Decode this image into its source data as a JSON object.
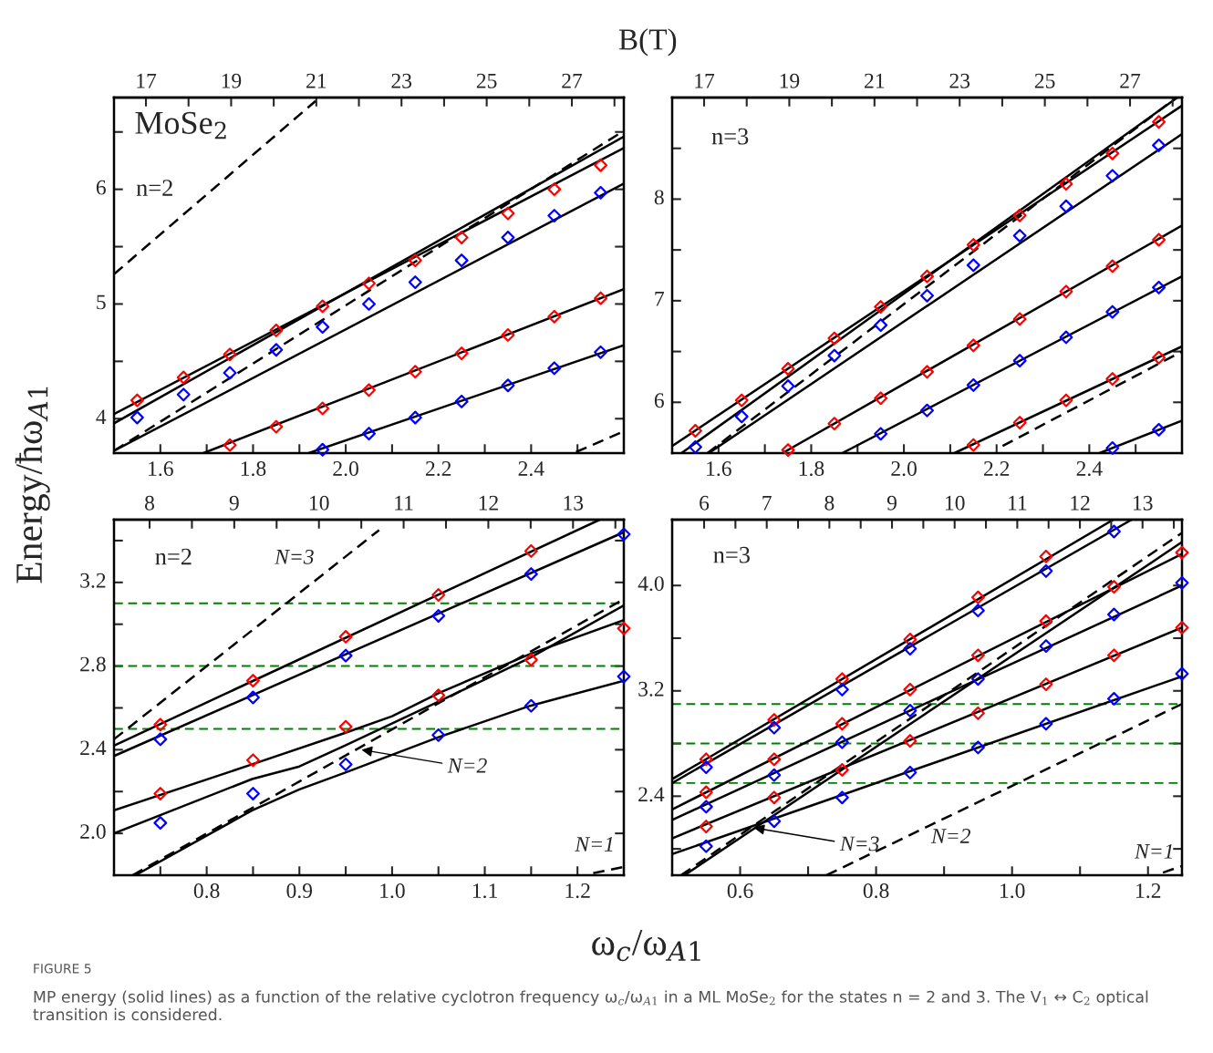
{
  "chart_data": [
    {
      "type": "line",
      "ylabel": "Energy/ħω$_{A1}$",
      "x2label": "B(T)",
      "xlim": [
        1.5,
        2.6
      ],
      "ylim": [
        3.7,
        6.8
      ],
      "x2lim": [
        16.25,
        28.22
      ],
      "xticks": [
        1.6,
        {
          "value": 1.7,
          "label": null
        },
        1.8,
        {
          "value": 1.9,
          "label": null
        },
        {
          "value": 2,
          "label": "2.0"
        },
        {
          "value": 2.1,
          "label": null
        },
        2.2,
        {
          "value": 2.3,
          "label": null
        },
        2.4,
        {
          "value": 2.5,
          "label": null
        }
      ],
      "yticks": [
        4,
        {
          "value": 4.5,
          "label": null
        },
        5,
        {
          "value": 5.5,
          "label": null
        },
        6,
        {
          "value": 6.5,
          "label": null
        }
      ],
      "x2ticks": [
        17,
        {
          "value": 18,
          "label": null
        },
        19,
        {
          "value": 20,
          "label": null
        },
        21,
        {
          "value": 22,
          "label": null
        },
        23,
        {
          "value": 24,
          "label": null
        },
        25,
        {
          "value": 26,
          "label": null
        },
        27,
        {
          "value": 28,
          "label": null
        }
      ],
      "annotations": [
        "MoSe$_{2}$",
        "n=2"
      ],
      "series": [
        {
          "type": "line",
          "color": "#000000",
          "line_style": "solid",
          "x": [
            1.5,
            2.6
          ],
          "values": [
            4.04,
            6.36
          ]
        },
        {
          "type": "line",
          "color": "#000000",
          "line_style": "solid",
          "x": [
            1.5,
            2.6
          ],
          "values": [
            3.96,
            6.46
          ]
        },
        {
          "type": "line",
          "color": "#000000",
          "line_style": "solid",
          "x": [
            1.5,
            2.6
          ],
          "values": [
            3.72,
            6.05
          ]
        },
        {
          "type": "line",
          "color": "#000000",
          "line_style": "solid",
          "x": [
            1.693,
            2.6
          ],
          "values": [
            3.7,
            5.13
          ]
        },
        {
          "type": "line",
          "color": "#000000",
          "line_style": "solid",
          "x": [
            1.92,
            2.6
          ],
          "values": [
            3.7,
            4.64
          ]
        },
        {
          "type": "line",
          "color": "#000000",
          "line_style": "dashed",
          "x": [
            1.5,
            1.935
          ],
          "values": [
            5.26,
            6.77
          ]
        },
        {
          "type": "line",
          "color": "#000000",
          "line_style": "dashed",
          "x": [
            1.5,
            2.6
          ],
          "values": [
            3.72,
            6.51
          ]
        },
        {
          "type": "line",
          "color": "#000000",
          "line_style": "dashed",
          "x": [
            2.497,
            2.6
          ],
          "values": [
            3.71,
            3.89
          ]
        },
        {
          "type": "scatter",
          "color": "#ff0000",
          "marker": "diamond",
          "x": [
            1.55,
            1.65,
            1.75,
            1.85,
            1.95,
            2.05,
            2.15,
            2.25,
            2.35,
            2.45,
            2.55
          ],
          "values": [
            4.16,
            4.36,
            4.56,
            4.77,
            4.98,
            5.18,
            5.38,
            5.58,
            5.79,
            6.0,
            6.21
          ]
        },
        {
          "type": "scatter",
          "color": "#0000ff",
          "marker": "diamond",
          "x": [
            1.55,
            1.65,
            1.75,
            1.85,
            1.95,
            2.05,
            2.15,
            2.25,
            2.35,
            2.45,
            2.55
          ],
          "values": [
            4.01,
            4.21,
            4.4,
            4.6,
            4.8,
            5.0,
            5.19,
            5.38,
            5.58,
            5.77,
            5.97
          ]
        },
        {
          "type": "scatter",
          "color": "#ff0000",
          "marker": "diamond",
          "x": [
            1.75,
            1.85,
            1.95,
            2.05,
            2.15,
            2.25,
            2.35,
            2.45,
            2.55
          ],
          "values": [
            3.77,
            3.93,
            4.09,
            4.25,
            4.41,
            4.57,
            4.73,
            4.89,
            5.05
          ]
        },
        {
          "type": "scatter",
          "color": "#0000ff",
          "marker": "diamond",
          "x": [
            1.95,
            2.05,
            2.15,
            2.25,
            2.35,
            2.45,
            2.55
          ],
          "values": [
            3.73,
            3.87,
            4.01,
            4.15,
            4.29,
            4.44,
            4.58
          ]
        }
      ]
    },
    {
      "type": "line",
      "xlim": [
        1.5,
        2.6
      ],
      "ylim": [
        5.5,
        9.0
      ],
      "x2lim": [
        16.25,
        28.22
      ],
      "xticks": [
        1.6,
        {
          "value": 1.7,
          "label": null
        },
        1.8,
        {
          "value": 1.9,
          "label": null
        },
        {
          "value": 2,
          "label": "2.0"
        },
        {
          "value": 2.1,
          "label": null
        },
        2.2,
        {
          "value": 2.3,
          "label": null
        },
        2.4,
        {
          "value": 2.5,
          "label": null
        }
      ],
      "yticks": [
        6,
        {
          "value": 6.5,
          "label": null
        },
        7,
        {
          "value": 7.5,
          "label": null
        },
        8,
        {
          "value": 8.5,
          "label": null
        }
      ],
      "x2ticks": [
        17,
        {
          "value": 18,
          "label": null
        },
        19,
        {
          "value": 20,
          "label": null
        },
        21,
        {
          "value": 22,
          "label": null
        },
        23,
        {
          "value": 24,
          "label": null
        },
        25,
        {
          "value": 26,
          "label": null
        },
        27,
        {
          "value": 28,
          "label": null
        }
      ],
      "annotations": [
        "n=3"
      ],
      "series": [
        {
          "type": "line",
          "color": "#000000",
          "line_style": "solid",
          "x": [
            1.5,
            2.6
          ],
          "values": [
            5.57,
            8.92
          ]
        },
        {
          "type": "line",
          "color": "#000000",
          "line_style": "solid",
          "x": [
            1.52,
            2.59
          ],
          "values": [
            5.5,
            9.0
          ]
        },
        {
          "type": "line",
          "color": "#000000",
          "line_style": "solid",
          "x": [
            1.579,
            2.6
          ],
          "values": [
            5.5,
            8.64
          ]
        },
        {
          "type": "line",
          "color": "#000000",
          "line_style": "solid",
          "x": [
            1.738,
            2.6
          ],
          "values": [
            5.5,
            7.74
          ]
        },
        {
          "type": "line",
          "color": "#000000",
          "line_style": "solid",
          "x": [
            1.867,
            2.6
          ],
          "values": [
            5.5,
            7.24
          ]
        },
        {
          "type": "line",
          "color": "#000000",
          "line_style": "solid",
          "x": [
            2.109,
            2.6
          ],
          "values": [
            5.5,
            6.55
          ]
        },
        {
          "type": "line",
          "color": "#000000",
          "line_style": "solid",
          "x": [
            2.422,
            2.6
          ],
          "values": [
            5.5,
            5.82
          ]
        },
        {
          "type": "line",
          "color": "#000000",
          "line_style": "dashed",
          "x": [
            1.576,
            2.588
          ],
          "values": [
            5.5,
            9.0
          ]
        },
        {
          "type": "line",
          "color": "#000000",
          "line_style": "dashed",
          "x": [
            2.213,
            2.6
          ],
          "values": [
            5.57,
            6.5
          ]
        },
        {
          "type": "scatter",
          "color": "#ff0000",
          "marker": "diamond",
          "x": [
            1.55,
            1.65,
            1.75,
            1.85,
            1.95,
            2.05,
            2.15,
            2.25,
            2.35,
            2.45,
            2.55
          ],
          "values": [
            5.72,
            6.02,
            6.33,
            6.63,
            6.94,
            7.24,
            7.55,
            7.84,
            8.15,
            8.45,
            8.76
          ]
        },
        {
          "type": "scatter",
          "color": "#0000ff",
          "marker": "diamond",
          "x": [
            1.55,
            1.65,
            1.75,
            1.85,
            1.95,
            2.05,
            2.15,
            2.25,
            2.35,
            2.45,
            2.55
          ],
          "values": [
            5.56,
            5.86,
            6.16,
            6.46,
            6.76,
            7.05,
            7.35,
            7.64,
            7.93,
            8.23,
            8.53
          ]
        },
        {
          "type": "scatter",
          "color": "#ff0000",
          "marker": "diamond",
          "x": [
            1.75,
            1.85,
            1.95,
            2.05,
            2.15,
            2.25,
            2.35,
            2.45,
            2.55
          ],
          "values": [
            5.53,
            5.79,
            6.04,
            6.3,
            6.56,
            6.82,
            7.09,
            7.34,
            7.6
          ]
        },
        {
          "type": "scatter",
          "color": "#0000ff",
          "marker": "diamond",
          "x": [
            1.95,
            2.05,
            2.15,
            2.25,
            2.35,
            2.45,
            2.55
          ],
          "values": [
            5.69,
            5.92,
            6.17,
            6.41,
            6.64,
            6.89,
            7.13
          ]
        },
        {
          "type": "scatter",
          "color": "#ff0000",
          "marker": "diamond",
          "x": [
            2.15,
            2.25,
            2.35,
            2.45,
            2.55
          ],
          "values": [
            5.58,
            5.8,
            6.02,
            6.23,
            6.44
          ]
        },
        {
          "type": "scatter",
          "color": "#0000ff",
          "marker": "diamond",
          "x": [
            2.45,
            2.55
          ],
          "values": [
            5.55,
            5.73
          ]
        }
      ]
    },
    {
      "type": "line",
      "xlabel": "ω$_{c}$/ω$_{A1}$",
      "xlim": [
        0.7,
        1.25
      ],
      "ylim": [
        1.8,
        3.5
      ],
      "x2lim": [
        7.58,
        13.6
      ],
      "xticks": [
        {
          "value": 0.75,
          "label": null
        },
        0.8,
        {
          "value": 0.85,
          "label": null
        },
        0.9,
        {
          "value": 0.95,
          "label": null
        },
        {
          "value": 1,
          "label": "1.0"
        },
        {
          "value": 1.05,
          "label": null
        },
        1.1,
        {
          "value": 1.15,
          "label": null
        },
        1.2
      ],
      "yticks": [
        {
          "value": 2,
          "label": "2.0"
        },
        {
          "value": 2.2,
          "label": null
        },
        2.4,
        {
          "value": 2.6,
          "label": null
        },
        2.8,
        {
          "value": 3,
          "label": null
        },
        3.2,
        {
          "value": 3.4,
          "label": null
        }
      ],
      "x2ticks": [
        8,
        {
          "value": 8.5,
          "label": null
        },
        9,
        {
          "value": 9.5,
          "label": null
        },
        10,
        {
          "value": 10.5,
          "label": null
        },
        11,
        {
          "value": 11.5,
          "label": null
        },
        12,
        {
          "value": 12.5,
          "label": null
        },
        13,
        {
          "value": 13.5,
          "label": null
        }
      ],
      "annotations": [
        "n=2",
        "N=3",
        {
          "text": "N=2",
          "x": 0.967,
          "y": 2.4
        },
        "N=1"
      ],
      "ref_lines": [
        {
          "axis": "y",
          "value": 3.1,
          "color": "#008000",
          "line_style": "dashed"
        },
        {
          "axis": "y",
          "value": 2.8,
          "color": "#008000",
          "line_style": "dashed"
        },
        {
          "axis": "y",
          "value": 2.5,
          "color": "#008000",
          "line_style": "dashed"
        }
      ],
      "series": [
        {
          "type": "line",
          "color": "#000000",
          "line_style": "solid",
          "x": [
            0.7,
            1.224
          ],
          "values": [
            2.42,
            3.5
          ]
        },
        {
          "type": "line",
          "color": "#000000",
          "line_style": "solid",
          "x": [
            0.7,
            1.25
          ],
          "values": [
            2.37,
            3.44
          ]
        },
        {
          "type": "line",
          "color": "#000000",
          "line_style": "solid",
          "x": [
            0.7,
            0.849,
            0.949,
            1.0,
            1.05,
            1.15,
            1.25
          ],
          "values": [
            2.11,
            2.33,
            2.48,
            2.56,
            2.67,
            2.86,
            3.02
          ]
        },
        {
          "type": "line",
          "color": "#000000",
          "line_style": "solid",
          "x": [
            0.7,
            0.849,
            0.9,
            0.949,
            1.05,
            1.149,
            1.25
          ],
          "values": [
            2.0,
            2.26,
            2.32,
            2.42,
            2.63,
            2.84,
            3.09
          ]
        },
        {
          "type": "line",
          "color": "#000000",
          "line_style": "solid",
          "x": [
            0.723,
            0.849,
            0.9,
            0.949,
            1.05,
            1.149,
            1.25
          ],
          "values": [
            1.8,
            2.11,
            2.21,
            2.29,
            2.46,
            2.61,
            2.73
          ]
        },
        {
          "type": "line",
          "color": "#000000",
          "line_style": "dashed",
          "x": [
            0.7,
            0.986
          ],
          "values": [
            2.45,
            3.45
          ]
        },
        {
          "type": "line",
          "color": "#000000",
          "line_style": "dashed",
          "x": [
            0.72,
            1.25
          ],
          "values": [
            1.8,
            3.12
          ]
        },
        {
          "type": "line",
          "color": "#000000",
          "line_style": "dashed",
          "x": [
            1.217,
            1.25
          ],
          "values": [
            1.81,
            1.84
          ]
        },
        {
          "type": "scatter",
          "color": "#ff0000",
          "marker": "diamond",
          "x": [
            0.75,
            0.85,
            0.95,
            1.05,
            1.15
          ],
          "values": [
            2.52,
            2.73,
            2.94,
            3.14,
            3.35
          ]
        },
        {
          "type": "scatter",
          "color": "#0000ff",
          "marker": "diamond",
          "x": [
            0.75,
            0.85,
            0.95,
            1.05,
            1.15,
            1.25
          ],
          "values": [
            2.45,
            2.65,
            2.85,
            3.04,
            3.24,
            3.43
          ]
        },
        {
          "type": "scatter",
          "color": "#ff0000",
          "marker": "diamond",
          "x": [
            0.75,
            0.85,
            0.95,
            1.05,
            1.15,
            1.25
          ],
          "values": [
            2.19,
            2.35,
            2.51,
            2.66,
            2.83,
            2.98
          ]
        },
        {
          "type": "scatter",
          "color": "#0000ff",
          "marker": "diamond",
          "x": [
            0.75,
            0.85,
            0.95,
            1.05,
            1.15,
            1.25
          ],
          "values": [
            2.05,
            2.19,
            2.33,
            2.47,
            2.61,
            2.75
          ]
        }
      ]
    },
    {
      "type": "line",
      "xlim": [
        0.5,
        1.25
      ],
      "ylim": [
        1.8,
        4.5
      ],
      "x2lim": [
        5.49,
        13.63
      ],
      "xticks": [
        0.6,
        {
          "value": 0.7,
          "label": null
        },
        0.8,
        {
          "value": 0.9,
          "label": null
        },
        {
          "value": 1,
          "label": "1.0"
        },
        {
          "value": 1.1,
          "label": null
        },
        1.2
      ],
      "yticks": [
        {
          "value": 2,
          "label": null
        },
        2.4,
        {
          "value": 2.8,
          "label": null
        },
        3.2,
        {
          "value": 3.6,
          "label": null
        },
        {
          "value": 4,
          "label": "4.0"
        }
      ],
      "x2ticks": [
        6,
        {
          "value": 6.5,
          "label": null
        },
        7,
        {
          "value": 7.5,
          "label": null
        },
        8,
        {
          "value": 8.5,
          "label": null
        },
        9,
        {
          "value": 9.5,
          "label": null
        },
        10,
        {
          "value": 10.5,
          "label": null
        },
        11,
        {
          "value": 11.5,
          "label": null
        },
        12,
        {
          "value": 12.5,
          "label": null
        },
        13,
        {
          "value": 13.5,
          "label": null
        }
      ],
      "annotations": [
        "n=3",
        {
          "text": "N=3",
          "x": 0.62,
          "y": 2.16
        },
        "N=2",
        "N=1"
      ],
      "ref_lines": [
        {
          "axis": "y",
          "value": 3.1,
          "color": "#008000",
          "line_style": "dashed"
        },
        {
          "axis": "y",
          "value": 2.8,
          "color": "#008000",
          "line_style": "dashed"
        },
        {
          "axis": "y",
          "value": 2.5,
          "color": "#008000",
          "line_style": "dashed"
        }
      ],
      "series": [
        {
          "type": "line",
          "color": "#000000",
          "line_style": "solid",
          "x": [
            0.5,
            1.149
          ],
          "values": [
            2.53,
            4.5
          ]
        },
        {
          "type": "line",
          "color": "#000000",
          "line_style": "solid",
          "x": [
            0.5,
            1.176
          ],
          "values": [
            2.5,
            4.5
          ]
        },
        {
          "type": "line",
          "color": "#000000",
          "line_style": "solid",
          "x": [
            0.5,
            1.25
          ],
          "values": [
            2.3,
            4.24
          ]
        },
        {
          "type": "line",
          "color": "#000000",
          "line_style": "solid",
          "x": [
            0.5,
            1.25
          ],
          "values": [
            2.22,
            4.0
          ]
        },
        {
          "type": "line",
          "color": "#000000",
          "line_style": "solid",
          "x": [
            0.5,
            1.25
          ],
          "values": [
            2.08,
            3.68
          ]
        },
        {
          "type": "line",
          "color": "#000000",
          "line_style": "solid",
          "x": [
            0.5,
            1.25
          ],
          "values": [
            1.96,
            3.31
          ]
        },
        {
          "type": "line",
          "color": "#000000",
          "line_style": "solid",
          "x": [
            0.518,
            1.25
          ],
          "values": [
            1.8,
            4.33
          ]
        },
        {
          "type": "line",
          "color": "#000000",
          "line_style": "dashed",
          "x": [
            0.513,
            1.25
          ],
          "values": [
            1.8,
            4.4
          ]
        },
        {
          "type": "line",
          "color": "#000000",
          "line_style": "dashed",
          "x": [
            0.727,
            1.25
          ],
          "values": [
            1.8,
            3.1
          ]
        },
        {
          "type": "line",
          "color": "#000000",
          "line_style": "dashed",
          "x": [
            1.222,
            1.25
          ],
          "values": [
            1.82,
            1.87
          ]
        },
        {
          "type": "scatter",
          "color": "#ff0000",
          "marker": "diamond",
          "x": [
            0.55,
            0.65,
            0.75,
            0.85,
            0.95,
            1.05
          ],
          "values": [
            2.68,
            2.98,
            3.29,
            3.59,
            3.91,
            4.22
          ]
        },
        {
          "type": "scatter",
          "color": "#0000ff",
          "marker": "diamond",
          "x": [
            0.55,
            0.65,
            0.75,
            0.85,
            0.95,
            1.05,
            1.15
          ],
          "values": [
            2.62,
            2.92,
            3.21,
            3.52,
            3.81,
            4.11,
            4.41
          ]
        },
        {
          "type": "scatter",
          "color": "#ff0000",
          "marker": "diamond",
          "x": [
            0.55,
            0.65,
            0.75,
            0.85,
            0.95,
            1.05,
            1.15,
            1.25
          ],
          "values": [
            2.43,
            2.68,
            2.95,
            3.21,
            3.47,
            3.73,
            3.99,
            4.25
          ]
        },
        {
          "type": "scatter",
          "color": "#0000ff",
          "marker": "diamond",
          "x": [
            0.55,
            0.65,
            0.75,
            0.85,
            0.95,
            1.05,
            1.15,
            1.25
          ],
          "values": [
            2.32,
            2.56,
            2.81,
            3.05,
            3.29,
            3.54,
            3.78,
            4.02
          ]
        },
        {
          "type": "scatter",
          "color": "#ff0000",
          "marker": "diamond",
          "x": [
            0.55,
            0.65,
            0.75,
            0.85,
            0.95,
            1.05,
            1.15,
            1.25
          ],
          "values": [
            2.17,
            2.39,
            2.6,
            2.82,
            3.03,
            3.25,
            3.47,
            3.68
          ]
        },
        {
          "type": "scatter",
          "color": "#0000ff",
          "marker": "diamond",
          "x": [
            0.55,
            0.65,
            0.75,
            0.85,
            0.95,
            1.05,
            1.15,
            1.25
          ],
          "values": [
            2.02,
            2.21,
            2.39,
            2.58,
            2.77,
            2.95,
            3.14,
            3.33
          ]
        }
      ]
    },
    {
      "type": "other",
      "annotations": [
        "FIGURE 5",
        "MP energy (solid lines) as a function of the relative cyclotron frequency ω$_{c}$/ω$_{A1}$ in a ML MoSe$_{2}$ for the states n = 2 and 3. The V$_{1}$ ↔ C$_{2}$ optical transition is considered."
      ]
    }
  ]
}
